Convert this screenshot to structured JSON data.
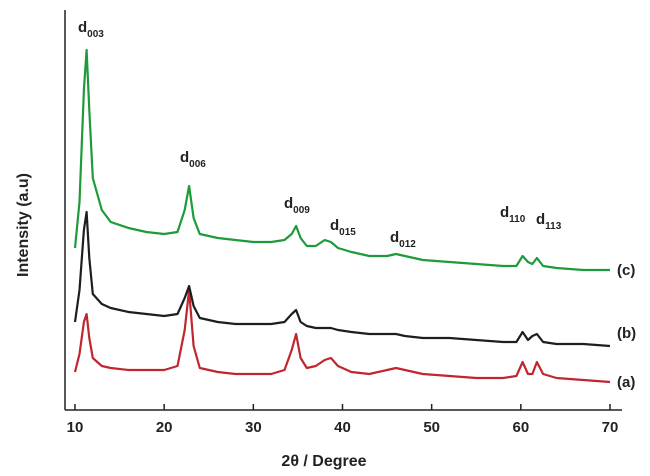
{
  "chart_data": {
    "type": "line",
    "x_label": "2θ / Degree",
    "y_label": "Intensity (a.u)",
    "xlim": [
      10,
      70
    ],
    "xticks": [
      10,
      20,
      30,
      40,
      50,
      60,
      70
    ],
    "ylim": [
      0,
      100
    ],
    "x": [
      10,
      10.5,
      11,
      11.3,
      11.6,
      12,
      13,
      14,
      16,
      18,
      20,
      21.5,
      22.3,
      22.8,
      23.3,
      24,
      26,
      28,
      30,
      32,
      33.5,
      34.3,
      34.8,
      35.3,
      36,
      37,
      38,
      38.7,
      39.5,
      41,
      43,
      45,
      46,
      47,
      49,
      52,
      55,
      58,
      59.5,
      60.2,
      60.8,
      61.3,
      61.8,
      62.5,
      64,
      67,
      70
    ],
    "series": [
      {
        "name": "(a)",
        "color": "#c0262e",
        "values": [
          9.5,
          14,
          22,
          24,
          18,
          13,
          11,
          10.5,
          10,
          10,
          10,
          11,
          20,
          30,
          16,
          10.5,
          9.5,
          9,
          9,
          9,
          10,
          15,
          19,
          13,
          10.5,
          11,
          12.5,
          13,
          11,
          9.5,
          9,
          10,
          10.5,
          10,
          9,
          8.5,
          8,
          8,
          8.5,
          12,
          9,
          9,
          12,
          9,
          8,
          7.5,
          7
        ]
      },
      {
        "name": "(b)",
        "color": "#1e1e1e",
        "values": [
          22,
          30,
          45,
          49.5,
          38,
          29,
          26.5,
          25.5,
          24.5,
          24,
          23.5,
          24,
          28,
          31,
          26,
          23,
          22,
          21.5,
          21.5,
          21.5,
          22,
          24,
          25,
          22,
          21,
          20.5,
          20.5,
          20.5,
          20,
          19.5,
          19,
          19,
          19,
          18.5,
          18,
          18,
          17.5,
          17,
          17,
          19.5,
          17.5,
          18.5,
          19,
          17,
          16.5,
          16.5,
          16
        ]
      },
      {
        "name": "(c)",
        "color": "#1e9a3a",
        "values": [
          40.5,
          52,
          80,
          90,
          75,
          58,
          50,
          47,
          45.5,
          44.5,
          44,
          44.5,
          50,
          56,
          48,
          44,
          43,
          42.5,
          42,
          42,
          42.5,
          44,
          46,
          43,
          41,
          41,
          42.5,
          42,
          40.5,
          39.5,
          38.5,
          38.5,
          39,
          38.5,
          37.5,
          37,
          36.5,
          36,
          36,
          38.5,
          37,
          36.5,
          38,
          36,
          35.5,
          35,
          35
        ]
      }
    ],
    "annotations": [
      {
        "text": "d",
        "subscript": "003"
      },
      {
        "text": "d",
        "subscript": "006"
      },
      {
        "text": "d",
        "subscript": "009"
      },
      {
        "text": "d",
        "subscript": "015"
      },
      {
        "text": "d",
        "subscript": "012"
      },
      {
        "text": "d",
        "subscript": "110"
      },
      {
        "text": "d",
        "subscript": "113"
      }
    ]
  }
}
